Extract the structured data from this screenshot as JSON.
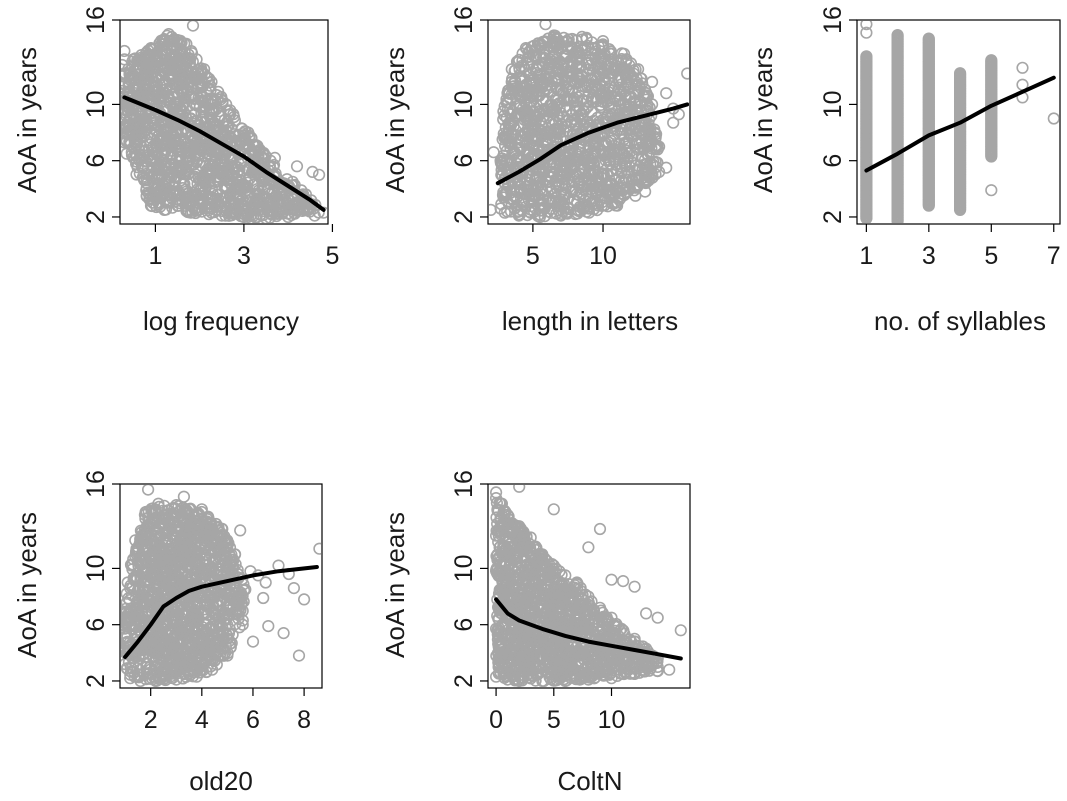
{
  "colors": {
    "points": "#a6a6a6",
    "fit_line": "#000000",
    "frame": "#000000"
  },
  "chart_data": [
    {
      "type": "scatter",
      "xlabel": "log frequency",
      "ylabel": "AoA in years",
      "xlim": [
        0.2,
        4.9
      ],
      "ylim": [
        1.5,
        16
      ],
      "xticks": [
        1,
        3,
        5
      ],
      "yticks": [
        2,
        6,
        10,
        16
      ],
      "series": [
        {
          "values": [
            [
              0.3,
              10.5
            ],
            [
              1,
              9.6
            ],
            [
              1.5,
              8.9
            ],
            [
              2,
              8.1
            ],
            [
              2.5,
              7.2
            ],
            [
              3,
              6.3
            ],
            [
              3.5,
              5.2
            ],
            [
              4,
              4.2
            ],
            [
              4.5,
              3.2
            ],
            [
              4.8,
              2.5
            ]
          ]
        }
      ],
      "points_cloud": {
        "core": [
          [
            0.25,
            12
          ],
          [
            0.35,
            6.5
          ],
          [
            0.9,
            2.8
          ],
          [
            1.2,
            2.5
          ],
          [
            1.8,
            2.3
          ],
          [
            2.5,
            2.1
          ],
          [
            3,
            2
          ],
          [
            3.5,
            1.9
          ],
          [
            4,
            2.0
          ],
          [
            4.6,
            2.1
          ],
          [
            4.8,
            2.3
          ],
          [
            4.4,
            3.6
          ],
          [
            4.1,
            4.5
          ],
          [
            3.6,
            6
          ],
          [
            3.1,
            8
          ],
          [
            2.6,
            10
          ],
          [
            2.1,
            12.5
          ],
          [
            1.7,
            14.3
          ],
          [
            1.3,
            15
          ],
          [
            0.9,
            14
          ],
          [
            0.5,
            13.2
          ]
        ],
        "outliers": [
          [
            0.3,
            13.8
          ],
          [
            0.3,
            13.2
          ],
          [
            0.25,
            12.8
          ],
          [
            0.3,
            12.2
          ],
          [
            0.3,
            11.4
          ],
          [
            0.35,
            7.9
          ],
          [
            0.3,
            7.3
          ],
          [
            0.65,
            8.2
          ],
          [
            1.85,
            15.6
          ],
          [
            4.55,
            5.2
          ],
          [
            4.7,
            5.0
          ],
          [
            4.2,
            5.6
          ],
          [
            3.7,
            6.2
          ],
          [
            0.55,
            7.4
          ]
        ]
      }
    },
    {
      "type": "scatter",
      "xlabel": "length in letters",
      "ylabel": "AoA in years",
      "xlim": [
        1.8,
        16.2
      ],
      "ylim": [
        1.5,
        16
      ],
      "xticks": [
        5,
        10
      ],
      "yticks": [
        2,
        6,
        10,
        16
      ],
      "series": [
        {
          "values": [
            [
              2.5,
              4.4
            ],
            [
              4,
              5.2
            ],
            [
              5.5,
              6.1
            ],
            [
              7,
              7.1
            ],
            [
              9,
              8.0
            ],
            [
              11,
              8.7
            ],
            [
              13,
              9.2
            ],
            [
              15,
              9.7
            ],
            [
              16,
              10.0
            ]
          ]
        }
      ],
      "points_cloud": {
        "core": [
          [
            2.7,
            2.6
          ],
          [
            3,
            2.3
          ],
          [
            4,
            2.1
          ],
          [
            5.5,
            2
          ],
          [
            7,
            2.1
          ],
          [
            9,
            2.3
          ],
          [
            11,
            2.8
          ],
          [
            13,
            3.8
          ],
          [
            14,
            5.2
          ],
          [
            14,
            7
          ],
          [
            13.5,
            10
          ],
          [
            12.5,
            12.5
          ],
          [
            11.5,
            13.6
          ],
          [
            10,
            14.5
          ],
          [
            8.5,
            14.8
          ],
          [
            6.5,
            14.9
          ],
          [
            4.5,
            14
          ],
          [
            3.5,
            12.5
          ],
          [
            2.9,
            9.5
          ],
          [
            2.7,
            6
          ]
        ],
        "outliers": [
          [
            2.2,
            6.6
          ],
          [
            2.0,
            2.5
          ],
          [
            5.9,
            15.7
          ],
          [
            13.5,
            11.6
          ],
          [
            14.5,
            10.8
          ],
          [
            15,
            9.7
          ],
          [
            15,
            8.7
          ],
          [
            16,
            12.2
          ],
          [
            15.4,
            9.3
          ],
          [
            14.5,
            5.5
          ],
          [
            13.9,
            6.8
          ],
          [
            12.5,
            4.3
          ]
        ]
      }
    },
    {
      "type": "scatter",
      "xlabel": "no. of syllables",
      "ylabel": "AoA in years",
      "xlim": [
        0.7,
        7.2
      ],
      "ylim": [
        1.5,
        16
      ],
      "xticks": [
        1,
        3,
        5,
        7
      ],
      "yticks": [
        2,
        6,
        10,
        16
      ],
      "series": [
        {
          "values": [
            [
              1,
              5.3
            ],
            [
              2,
              6.5
            ],
            [
              3,
              7.8
            ],
            [
              4,
              8.7
            ],
            [
              5,
              9.9
            ],
            [
              6,
              10.9
            ],
            [
              7,
              11.9
            ]
          ]
        }
      ],
      "points_cloud": {
        "columns": [
          {
            "x": 1,
            "ymin": 1.9,
            "ymax": 13.5
          },
          {
            "x": 2,
            "ymin": 1.7,
            "ymax": 15.0
          },
          {
            "x": 3,
            "ymin": 2.8,
            "ymax": 14.7
          },
          {
            "x": 4,
            "ymin": 2.5,
            "ymax": 12.3
          },
          {
            "x": 5,
            "ymin": 6.3,
            "ymax": 13.2
          }
        ],
        "outliers": [
          [
            1,
            15.7
          ],
          [
            1,
            15.1
          ],
          [
            5,
            3.9
          ],
          [
            6,
            12.6
          ],
          [
            6,
            11.4
          ],
          [
            6,
            10.5
          ],
          [
            7,
            9.0
          ]
        ]
      }
    },
    {
      "type": "scatter",
      "xlabel": "old20",
      "ylabel": "AoA in years",
      "xlim": [
        0.8,
        8.7
      ],
      "ylim": [
        1.5,
        16
      ],
      "xticks": [
        2,
        4,
        6,
        8
      ],
      "yticks": [
        2,
        6,
        10,
        16
      ],
      "series": [
        {
          "values": [
            [
              1,
              3.7
            ],
            [
              1.5,
              4.8
            ],
            [
              2,
              6.0
            ],
            [
              2.5,
              7.3
            ],
            [
              3,
              7.9
            ],
            [
              3.5,
              8.4
            ],
            [
              4,
              8.7
            ],
            [
              5,
              9.1
            ],
            [
              6,
              9.5
            ],
            [
              7,
              9.8
            ],
            [
              8.5,
              10.1
            ]
          ]
        }
      ],
      "points_cloud": {
        "core": [
          [
            1,
            3.2
          ],
          [
            1.2,
            2.2
          ],
          [
            1.6,
            2
          ],
          [
            2.2,
            2
          ],
          [
            3,
            2.1
          ],
          [
            3.8,
            2.3
          ],
          [
            4.4,
            2.8
          ],
          [
            5,
            3.8
          ],
          [
            5.6,
            6
          ],
          [
            5.7,
            8.5
          ],
          [
            5.3,
            11
          ],
          [
            4.8,
            12.8
          ],
          [
            4,
            14.2
          ],
          [
            3,
            14.5
          ],
          [
            2.3,
            14.6
          ],
          [
            1.8,
            14
          ],
          [
            1.4,
            12
          ],
          [
            1.1,
            9
          ],
          [
            0.95,
            6
          ]
        ],
        "outliers": [
          [
            1.9,
            15.6
          ],
          [
            3.3,
            15.1
          ],
          [
            6.2,
            9.5
          ],
          [
            6.5,
            9
          ],
          [
            7,
            10.2
          ],
          [
            7.4,
            9.6
          ],
          [
            7.6,
            8.6
          ],
          [
            8,
            7.8
          ],
          [
            8.6,
            11.4
          ],
          [
            6.6,
            5.9
          ],
          [
            7.2,
            5.4
          ],
          [
            7.8,
            3.8
          ],
          [
            6,
            4.8
          ],
          [
            5.9,
            9.8
          ],
          [
            6.4,
            7.9
          ],
          [
            5.5,
            12.7
          ]
        ]
      }
    },
    {
      "type": "scatter",
      "xlabel": "ColtN",
      "ylabel": "AoA in years",
      "xlim": [
        -0.7,
        16.8
      ],
      "ylim": [
        1.5,
        16
      ],
      "xticks": [
        0,
        5,
        10
      ],
      "yticks": [
        2,
        6,
        10,
        16
      ],
      "series": [
        {
          "values": [
            [
              0,
              7.8
            ],
            [
              1,
              6.8
            ],
            [
              2,
              6.3
            ],
            [
              4,
              5.7
            ],
            [
              6,
              5.2
            ],
            [
              8,
              4.8
            ],
            [
              10,
              4.5
            ],
            [
              12,
              4.2
            ],
            [
              14,
              3.9
            ],
            [
              16,
              3.6
            ]
          ]
        }
      ],
      "points_cloud": {
        "core": [
          [
            0,
            2.3
          ],
          [
            0,
            15
          ],
          [
            0.5,
            14.6
          ],
          [
            1,
            13.8
          ],
          [
            2,
            13
          ],
          [
            3,
            12.2
          ],
          [
            4,
            11
          ],
          [
            5,
            10.2
          ],
          [
            6,
            9.5
          ],
          [
            7,
            9
          ],
          [
            8,
            8
          ],
          [
            9,
            7.2
          ],
          [
            10,
            6.5
          ],
          [
            11,
            5.6
          ],
          [
            12,
            5
          ],
          [
            13,
            4.3
          ],
          [
            14,
            3.6
          ],
          [
            14,
            2.7
          ],
          [
            12,
            2.5
          ],
          [
            10,
            2.2
          ],
          [
            8,
            2.1
          ],
          [
            6,
            2.0
          ],
          [
            4,
            2.0
          ],
          [
            2,
            2.0
          ],
          [
            1,
            2.1
          ]
        ],
        "outliers": [
          [
            0,
            15.4
          ],
          [
            2,
            15.8
          ],
          [
            5,
            14.2
          ],
          [
            8,
            11.5
          ],
          [
            9,
            12.8
          ],
          [
            10,
            9.2
          ],
          [
            11,
            9.1
          ],
          [
            12,
            8.7
          ],
          [
            13,
            6.8
          ],
          [
            14,
            6.5
          ],
          [
            16,
            5.6
          ],
          [
            14,
            3.0
          ],
          [
            15,
            2.8
          ]
        ]
      }
    }
  ]
}
